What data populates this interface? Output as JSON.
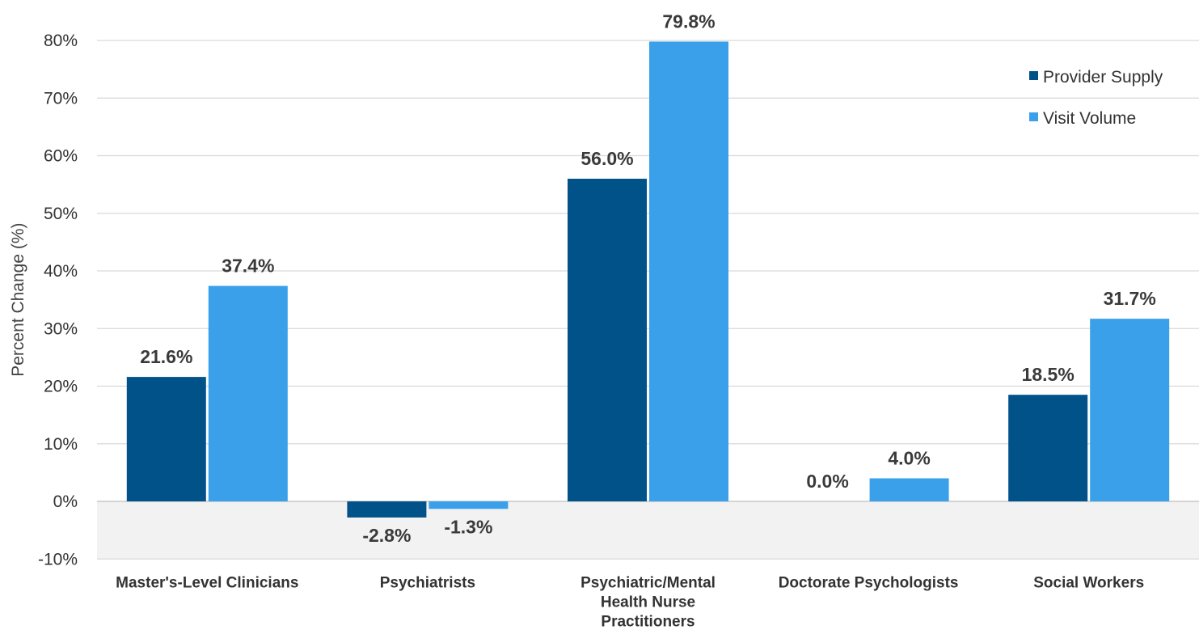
{
  "chart_data": {
    "type": "bar",
    "title": "",
    "xlabel": "",
    "ylabel": "Percent Change (%)",
    "ylim": [
      -10,
      80
    ],
    "y_ticks": [
      -10,
      0,
      10,
      20,
      30,
      40,
      50,
      60,
      70,
      80
    ],
    "y_tick_labels": [
      "-10%",
      "0%",
      "10%",
      "20%",
      "30%",
      "40%",
      "50%",
      "60%",
      "70%",
      "80%"
    ],
    "grid": true,
    "negative_region_shaded": true,
    "legend_position": "top-right",
    "categories": [
      [
        "Master's-Level Clinicians"
      ],
      [
        "Psychiatrists"
      ],
      [
        "Psychiatric/Mental",
        "Health Nurse",
        "Practitioners"
      ],
      [
        "Doctorate Psychologists"
      ],
      [
        "Social Workers"
      ]
    ],
    "series": [
      {
        "name": "Provider Supply",
        "color": "#02528a",
        "values": [
          21.6,
          -2.8,
          56.0,
          0.0,
          18.5
        ],
        "labels": [
          "21.6%",
          "-2.8%",
          "56.0%",
          "0.0%",
          "18.5%"
        ]
      },
      {
        "name": "Visit Volume",
        "color": "#3aa0ea",
        "values": [
          37.4,
          -1.3,
          79.8,
          4.0,
          31.7
        ],
        "labels": [
          "37.4%",
          "-1.3%",
          "79.8%",
          "4.0%",
          "31.7%"
        ]
      }
    ]
  }
}
